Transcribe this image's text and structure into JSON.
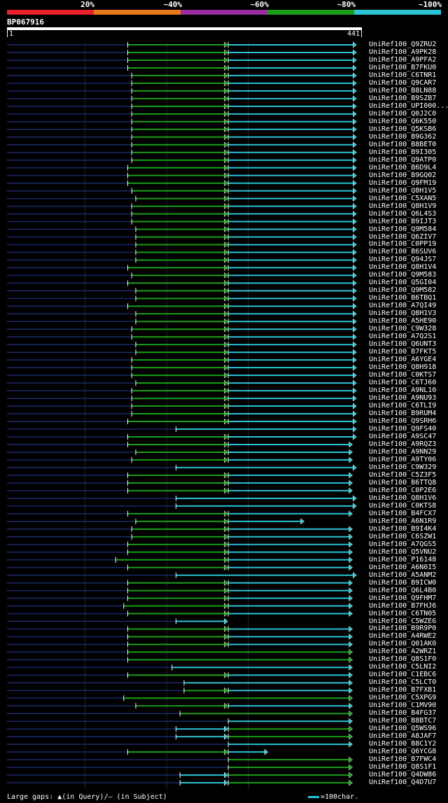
{
  "legend": {
    "labels": [
      "20%",
      "~40%",
      "~60%",
      "~80%",
      "~100%"
    ],
    "colors": [
      "#e8202a",
      "#e87818",
      "#9a2ea0",
      "#1aa018",
      "#2ac4d4"
    ]
  },
  "query": {
    "id": "BP067916",
    "start": "1",
    "end": "441"
  },
  "colors": {
    "green": "#1aa018",
    "cyan": "#2ac4d4",
    "navy": "#1a2a6a",
    "gap": "#ffff80"
  },
  "footer": {
    "gaps_text": "Large gaps: ▲(in Query)/– (in Subject)",
    "scale_text": "=100char."
  },
  "chart_data": {
    "type": "alignment",
    "query_length": 441,
    "hits": [
      {
        "name": "UniRef100_Q9ZRU2",
        "green": [
          150,
          270
        ],
        "cyan": [
          275,
          430
        ]
      },
      {
        "name": "UniRef100_A9PK28",
        "green": [
          150,
          270
        ],
        "cyan": [
          275,
          430
        ]
      },
      {
        "name": "UniRef100_A9PFA2",
        "green": [
          150,
          270
        ],
        "cyan": [
          275,
          430
        ]
      },
      {
        "name": "UniRef100_B7FKU0",
        "green": [
          150,
          270
        ],
        "cyan": [
          275,
          430
        ]
      },
      {
        "name": "UniRef100_C6TNR1",
        "green": [
          155,
          270
        ],
        "cyan": [
          275,
          430
        ]
      },
      {
        "name": "UniRef100_Q9CAR7",
        "green": [
          155,
          270
        ],
        "cyan": [
          275,
          430
        ]
      },
      {
        "name": "UniRef100_B8LN88",
        "green": [
          155,
          270
        ],
        "cyan": [
          275,
          430
        ]
      },
      {
        "name": "UniRef100_B9SZB7",
        "green": [
          155,
          270
        ],
        "cyan": [
          275,
          430
        ]
      },
      {
        "name": "UniRef100_UPI000...",
        "green": [
          155,
          270
        ],
        "cyan": [
          275,
          430
        ]
      },
      {
        "name": "UniRef100_Q0J2C0",
        "green": [
          155,
          270
        ],
        "cyan": [
          275,
          430
        ]
      },
      {
        "name": "UniRef100_Q6K550",
        "green": [
          155,
          270
        ],
        "cyan": [
          275,
          430
        ]
      },
      {
        "name": "UniRef100_Q5KSB6",
        "green": [
          155,
          270
        ],
        "cyan": [
          275,
          430
        ]
      },
      {
        "name": "UniRef100_B9G362",
        "green": [
          155,
          270
        ],
        "cyan": [
          275,
          430
        ]
      },
      {
        "name": "UniRef100_B8BET0",
        "green": [
          155,
          270
        ],
        "cyan": [
          275,
          430
        ]
      },
      {
        "name": "UniRef100_B9I305",
        "green": [
          155,
          270
        ],
        "cyan": [
          275,
          430
        ]
      },
      {
        "name": "UniRef100_Q9ATP0",
        "green": [
          155,
          270
        ],
        "cyan": [
          275,
          430
        ]
      },
      {
        "name": "UniRef100_B6D9L4",
        "green": [
          150,
          270
        ],
        "cyan": [
          275,
          430
        ]
      },
      {
        "name": "UniRef100_B9GQ02",
        "green": [
          150,
          270
        ],
        "cyan": [
          275,
          430
        ]
      },
      {
        "name": "UniRef100_Q9FM19",
        "green": [
          150,
          270
        ],
        "cyan": [
          275,
          430
        ]
      },
      {
        "name": "UniRef100_Q8H1V5",
        "green": [
          155,
          270
        ],
        "cyan": [
          275,
          430
        ]
      },
      {
        "name": "UniRef100_C5XAN5",
        "green": [
          160,
          270
        ],
        "cyan": [
          275,
          430
        ]
      },
      {
        "name": "UniRef100_Q8H1V9",
        "green": [
          155,
          270
        ],
        "cyan": [
          275,
          430
        ]
      },
      {
        "name": "UniRef100_Q6L4S3",
        "green": [
          155,
          270
        ],
        "cyan": [
          275,
          430
        ]
      },
      {
        "name": "UniRef100_B9IJT3",
        "green": [
          155,
          270
        ],
        "cyan": [
          275,
          430
        ]
      },
      {
        "name": "UniRef100_Q9M584",
        "green": [
          160,
          270
        ],
        "cyan": [
          275,
          430
        ]
      },
      {
        "name": "UniRef100_Q6ZIV7",
        "green": [
          160,
          270
        ],
        "cyan": [
          275,
          430
        ]
      },
      {
        "name": "UniRef100_C0PP19",
        "green": [
          160,
          270
        ],
        "cyan": [
          275,
          430
        ]
      },
      {
        "name": "UniRef100_B6SUV6",
        "green": [
          160,
          270
        ],
        "cyan": [
          275,
          430
        ]
      },
      {
        "name": "UniRef100_Q94JS7",
        "green": [
          160,
          270
        ],
        "cyan": [
          275,
          430
        ]
      },
      {
        "name": "UniRef100_Q8H1V4",
        "green": [
          150,
          270
        ],
        "cyan": [
          275,
          430
        ]
      },
      {
        "name": "UniRef100_Q9M583",
        "green": [
          155,
          270
        ],
        "cyan": [
          275,
          430
        ]
      },
      {
        "name": "UniRef100_Q5GI04",
        "green": [
          150,
          270
        ],
        "cyan": [
          275,
          430
        ]
      },
      {
        "name": "UniRef100_Q9M582",
        "green": [
          160,
          270
        ],
        "cyan": [
          275,
          430
        ]
      },
      {
        "name": "UniRef100_B6TBQ1",
        "green": [
          160,
          270
        ],
        "cyan": [
          275,
          430
        ]
      },
      {
        "name": "UniRef100_A7QI49",
        "green": [
          150,
          270
        ],
        "cyan": [
          275,
          430
        ]
      },
      {
        "name": "UniRef100_Q8H1V3",
        "green": [
          160,
          270
        ],
        "cyan": [
          275,
          430
        ]
      },
      {
        "name": "UniRef100_A5HE90",
        "green": [
          160,
          270
        ],
        "cyan": [
          275,
          430
        ]
      },
      {
        "name": "UniRef100_C9W328",
        "green": [
          155,
          270
        ],
        "cyan": [
          275,
          430
        ]
      },
      {
        "name": "UniRef100_A7Q2S1",
        "green": [
          155,
          270
        ],
        "cyan": [
          275,
          430
        ]
      },
      {
        "name": "UniRef100_Q6UNT3",
        "green": [
          160,
          270
        ],
        "cyan": [
          275,
          430
        ]
      },
      {
        "name": "UniRef100_B7FKT5",
        "green": [
          160,
          270
        ],
        "cyan": [
          275,
          430
        ]
      },
      {
        "name": "UniRef100_A6YGE4",
        "green": [
          155,
          270
        ],
        "cyan": [
          275,
          430
        ]
      },
      {
        "name": "UniRef100_Q8H918",
        "green": [
          155,
          270
        ],
        "cyan": [
          275,
          430
        ]
      },
      {
        "name": "UniRef100_C0KTS7",
        "green": [
          155,
          270
        ],
        "cyan": [
          275,
          430
        ]
      },
      {
        "name": "UniRef100_C6TJ60",
        "green": [
          160,
          270
        ],
        "cyan": [
          275,
          430
        ]
      },
      {
        "name": "UniRef100_A9NL10",
        "green": [
          155,
          270
        ],
        "cyan": [
          275,
          430
        ]
      },
      {
        "name": "UniRef100_A9NU93",
        "green": [
          155,
          270
        ],
        "cyan": [
          275,
          430
        ]
      },
      {
        "name": "UniRef100_C6TLI9",
        "green": [
          155,
          270
        ],
        "cyan": [
          275,
          430
        ]
      },
      {
        "name": "UniRef100_B9RUM4",
        "green": [
          155,
          270
        ],
        "cyan": [
          275,
          430
        ]
      },
      {
        "name": "UniRef100_Q9SRH6",
        "green": [
          150,
          270
        ],
        "cyan": [
          275,
          430
        ]
      },
      {
        "name": "UniRef100_Q9FS40",
        "green": [
          210,
          210
        ],
        "cyan": [
          210,
          430
        ]
      },
      {
        "name": "UniRef100_A9SC47",
        "green": [
          150,
          270
        ],
        "cyan": [
          275,
          430
        ]
      },
      {
        "name": "UniRef100_A9RQZ3",
        "green": [
          150,
          270
        ],
        "cyan": [
          275,
          425
        ]
      },
      {
        "name": "UniRef100_A9NN29",
        "green": [
          160,
          270
        ],
        "cyan": [
          275,
          425
        ]
      },
      {
        "name": "UniRef100_A9TY06",
        "green": [
          155,
          270
        ],
        "cyan": [
          275,
          425
        ]
      },
      {
        "name": "UniRef100_C9W329",
        "green": [
          210,
          210
        ],
        "cyan": [
          210,
          430
        ]
      },
      {
        "name": "UniRef100_C5Z3F5",
        "green": [
          150,
          270
        ],
        "cyan": [
          275,
          425
        ]
      },
      {
        "name": "UniRef100_B6TTQ8",
        "green": [
          150,
          270
        ],
        "cyan": [
          275,
          425
        ]
      },
      {
        "name": "UniRef100_C0P2E6",
        "green": [
          150,
          270
        ],
        "cyan": [
          275,
          425
        ]
      },
      {
        "name": "UniRef100_Q8H1V6",
        "green": [
          210,
          210
        ],
        "cyan": [
          210,
          430
        ]
      },
      {
        "name": "UniRef100_C0KTS8",
        "green": [
          210,
          210
        ],
        "cyan": [
          210,
          430
        ]
      },
      {
        "name": "UniRef100_B4FCX7",
        "green": [
          150,
          270
        ],
        "cyan": [
          275,
          425
        ]
      },
      {
        "name": "UniRef100_A6N1R9",
        "green": [
          160,
          270
        ],
        "cyan": [
          275,
          365
        ]
      },
      {
        "name": "UniRef100_B9I4K4",
        "green": [
          155,
          270
        ],
        "cyan": [
          275,
          425
        ]
      },
      {
        "name": "UniRef100_C6SZW1",
        "green": [
          155,
          270
        ],
        "cyan": [
          275,
          425
        ]
      },
      {
        "name": "UniRef100_A7QGS5",
        "green": [
          150,
          270
        ],
        "cyan": [
          275,
          425
        ]
      },
      {
        "name": "UniRef100_Q5VNU2",
        "green": [
          150,
          270
        ],
        "cyan": [
          275,
          425
        ]
      },
      {
        "name": "UniRef100_P16148",
        "green": [
          135,
          270
        ],
        "cyan": [
          275,
          425
        ]
      },
      {
        "name": "UniRef100_A6N0I5",
        "green": [
          150,
          270
        ],
        "cyan": [
          275,
          425
        ]
      },
      {
        "name": "UniRef100_A5ANM2",
        "green": [
          210,
          210
        ],
        "cyan": [
          210,
          430
        ]
      },
      {
        "name": "UniRef100_B9ICW0",
        "green": [
          150,
          270
        ],
        "cyan": [
          275,
          425
        ]
      },
      {
        "name": "UniRef100_Q6L4B0",
        "green": [
          150,
          270
        ],
        "cyan": [
          275,
          425
        ]
      },
      {
        "name": "UniRef100_Q9FHM7",
        "green": [
          150,
          270
        ],
        "cyan": [
          275,
          425
        ]
      },
      {
        "name": "UniRef100_B7FHJ6",
        "green": [
          145,
          270
        ],
        "cyan": [
          275,
          425
        ]
      },
      {
        "name": "UniRef100_C6TN05",
        "green": [
          150,
          270
        ],
        "cyan": [
          275,
          425
        ]
      },
      {
        "name": "UniRef100_C5WZE6",
        "green": [
          210,
          210
        ],
        "cyan": [
          210,
          270
        ]
      },
      {
        "name": "UniRef100_B9R9P0",
        "green": [
          150,
          270
        ],
        "cyan": [
          275,
          425
        ]
      },
      {
        "name": "UniRef100_A4RWE2",
        "green": [
          150,
          270
        ],
        "cyan": [
          275,
          425
        ]
      },
      {
        "name": "UniRef100_Q01AK0",
        "green": [
          150,
          270
        ],
        "cyan": [
          275,
          425
        ]
      },
      {
        "name": "UniRef100_A2WRZ1",
        "green": [
          150,
          425
        ],
        "cyan": [
          275,
          275
        ]
      },
      {
        "name": "UniRef100_Q8S1F0",
        "green": [
          150,
          425
        ],
        "cyan": [
          275,
          275
        ]
      },
      {
        "name": "UniRef100_C5LNI2",
        "green": [
          205,
          205
        ],
        "cyan": [
          205,
          425
        ]
      },
      {
        "name": "UniRef100_C1EBC6",
        "green": [
          150,
          270
        ],
        "cyan": [
          275,
          425
        ]
      },
      {
        "name": "UniRef100_C5LCT0",
        "green": [
          220,
          220
        ],
        "cyan": [
          220,
          425
        ]
      },
      {
        "name": "UniRef100_B7FXB1",
        "green": [
          220,
          270
        ],
        "cyan": [
          275,
          425
        ]
      },
      {
        "name": "UniRef100_C5XPG9",
        "green": [
          145,
          425
        ],
        "cyan": [
          275,
          275
        ]
      },
      {
        "name": "UniRef100_C1MV90",
        "green": [
          160,
          270
        ],
        "cyan": [
          275,
          425
        ]
      },
      {
        "name": "UniRef100_B4FG37",
        "green": [
          215,
          425
        ],
        "cyan": [
          275,
          275
        ]
      },
      {
        "name": "UniRef100_B8BTC7",
        "green": [
          275,
          275
        ],
        "cyan": [
          275,
          425
        ]
      },
      {
        "name": "UniRef100_Q5WS96",
        "green": [
          275,
          425
        ],
        "cyan": [
          210,
          270
        ]
      },
      {
        "name": "UniRef100_A8JAF7",
        "green": [
          275,
          425
        ],
        "cyan": [
          210,
          270
        ]
      },
      {
        "name": "UniRef100_B8C1Y2",
        "green": [
          275,
          275
        ],
        "cyan": [
          275,
          425
        ]
      },
      {
        "name": "UniRef100_Q6YCG8",
        "green": [
          150,
          270
        ],
        "cyan": [
          275,
          320
        ]
      },
      {
        "name": "UniRef100_B7FWC4",
        "green": [
          275,
          425
        ],
        "cyan": [
          275,
          275
        ]
      },
      {
        "name": "UniRef100_Q8S1F1",
        "green": [
          275,
          425
        ],
        "cyan": [
          275,
          275
        ]
      },
      {
        "name": "UniRef100_Q4DW86",
        "green": [
          275,
          425
        ],
        "cyan": [
          215,
          270
        ]
      },
      {
        "name": "UniRef100_Q4D7U7",
        "green": [
          275,
          425
        ],
        "cyan": [
          215,
          270
        ]
      }
    ]
  }
}
